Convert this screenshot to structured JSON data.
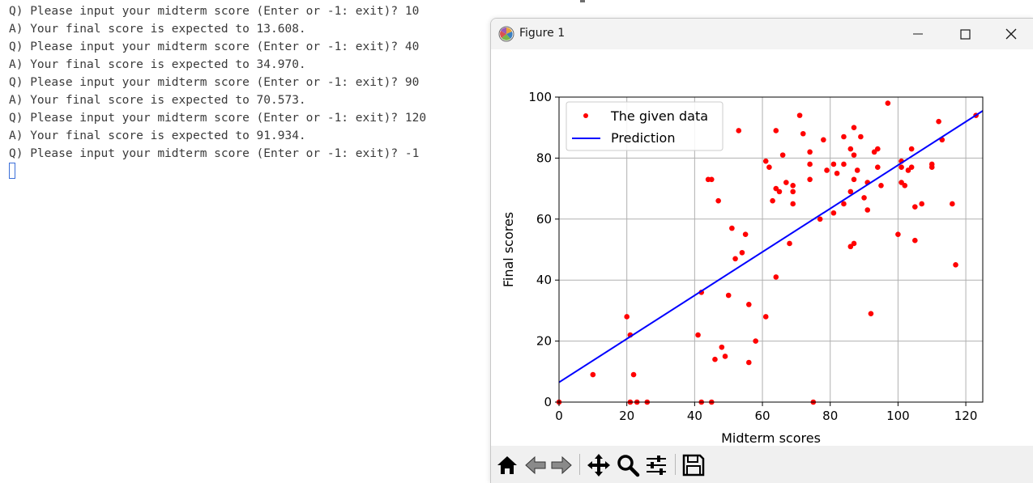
{
  "terminal": {
    "lines": [
      "Q) Please input your midterm score (Enter or -1: exit)? 10",
      "A) Your final score is expected to 13.608.",
      "Q) Please input your midterm score (Enter or -1: exit)? 40",
      "A) Your final score is expected to 34.970.",
      "Q) Please input your midterm score (Enter or -1: exit)? 90",
      "A) Your final score is expected to 70.573.",
      "Q) Please input your midterm score (Enter or -1: exit)? 120",
      "A) Your final score is expected to 91.934.",
      "Q) Please input your midterm score (Enter or -1: exit)? -1"
    ]
  },
  "window": {
    "title": "Figure 1",
    "controls": [
      "minimize-icon",
      "maximize-icon",
      "close-icon"
    ]
  },
  "toolbar": {
    "buttons": [
      "home-icon",
      "back-arrow-icon",
      "forward-arrow-icon",
      "pan-icon",
      "zoom-icon",
      "configure-subplots-icon",
      "save-icon"
    ]
  },
  "colors": {
    "data_points": "#ff0000",
    "prediction_line": "#0000ff",
    "grid": "#b0b0b0"
  },
  "chart_data": {
    "type": "scatter",
    "xlabel": "Midterm scores",
    "ylabel": "Final scores",
    "xlim": [
      0,
      125
    ],
    "ylim": [
      0,
      100
    ],
    "x_ticks": [
      0,
      20,
      40,
      60,
      80,
      100,
      120
    ],
    "y_ticks": [
      0,
      20,
      40,
      60,
      80,
      100
    ],
    "grid": true,
    "legend": {
      "placement": "top-left",
      "entries": [
        "The given data",
        "Prediction"
      ]
    },
    "series": [
      {
        "name": "The given data",
        "style": "points",
        "points": [
          [
            0,
            0
          ],
          [
            10,
            9
          ],
          [
            20,
            28
          ],
          [
            21,
            22
          ],
          [
            21,
            0
          ],
          [
            22,
            9
          ],
          [
            23,
            0
          ],
          [
            26,
            0
          ],
          [
            41,
            22
          ],
          [
            42,
            36
          ],
          [
            42,
            0
          ],
          [
            44,
            73
          ],
          [
            45,
            73
          ],
          [
            45,
            0
          ],
          [
            46,
            14
          ],
          [
            47,
            66
          ],
          [
            48,
            18
          ],
          [
            49,
            15
          ],
          [
            50,
            35
          ],
          [
            51,
            57
          ],
          [
            52,
            47
          ],
          [
            53,
            89
          ],
          [
            54,
            49
          ],
          [
            55,
            55
          ],
          [
            56,
            32
          ],
          [
            56,
            13
          ],
          [
            58,
            20
          ],
          [
            61,
            79
          ],
          [
            61,
            28
          ],
          [
            62,
            77
          ],
          [
            63,
            66
          ],
          [
            64,
            89
          ],
          [
            64,
            70
          ],
          [
            64,
            41
          ],
          [
            65,
            69
          ],
          [
            66,
            81
          ],
          [
            67,
            72
          ],
          [
            68,
            52
          ],
          [
            69,
            71
          ],
          [
            69,
            69
          ],
          [
            69,
            65
          ],
          [
            71,
            94
          ],
          [
            72,
            88
          ],
          [
            74,
            82
          ],
          [
            74,
            78
          ],
          [
            74,
            73
          ],
          [
            75,
            0
          ],
          [
            77,
            60
          ],
          [
            78,
            86
          ],
          [
            79,
            76
          ],
          [
            81,
            78
          ],
          [
            81,
            62
          ],
          [
            82,
            75
          ],
          [
            84,
            87
          ],
          [
            84,
            78
          ],
          [
            84,
            65
          ],
          [
            86,
            83
          ],
          [
            86,
            69
          ],
          [
            86,
            51
          ],
          [
            87,
            90
          ],
          [
            87,
            81
          ],
          [
            87,
            73
          ],
          [
            87,
            52
          ],
          [
            88,
            76
          ],
          [
            89,
            87
          ],
          [
            90,
            67
          ],
          [
            91,
            72
          ],
          [
            91,
            63
          ],
          [
            92,
            29
          ],
          [
            93,
            82
          ],
          [
            94,
            83
          ],
          [
            94,
            77
          ],
          [
            95,
            71
          ],
          [
            97,
            98
          ],
          [
            100,
            55
          ],
          [
            101,
            79
          ],
          [
            101,
            77
          ],
          [
            101,
            72
          ],
          [
            102,
            71
          ],
          [
            103,
            76
          ],
          [
            104,
            83
          ],
          [
            104,
            77
          ],
          [
            105,
            64
          ],
          [
            105,
            53
          ],
          [
            107,
            65
          ],
          [
            110,
            78
          ],
          [
            110,
            77
          ],
          [
            112,
            92
          ],
          [
            113,
            86
          ],
          [
            116,
            65
          ],
          [
            117,
            45
          ],
          [
            123,
            94
          ]
        ]
      },
      {
        "name": "Prediction",
        "style": "line",
        "points": [
          [
            0,
            6.49
          ],
          [
            125,
            95.49
          ]
        ]
      }
    ]
  }
}
